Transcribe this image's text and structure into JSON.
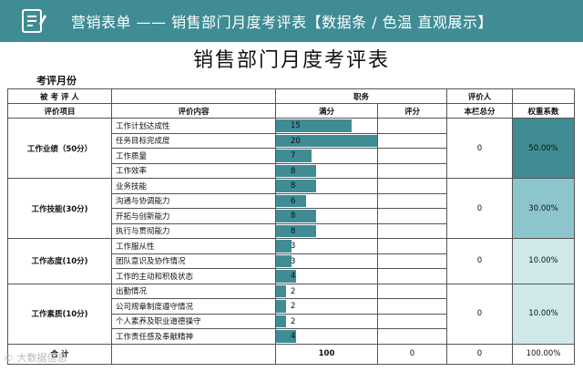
{
  "banner": {
    "title": "营销表单 —— 销售部门月度考评表【数据条 / 色温 直观展示】",
    "icon": "clipboard-icon",
    "color": "#3f8c94"
  },
  "sheet_title": "销售部门月度考评表",
  "period_label": "考评月份",
  "header": {
    "evaluatee": "被 考 评 人",
    "position": "职务",
    "evaluator": "评价人",
    "item": "评价项目",
    "content": "评价内容",
    "full_score": "满分",
    "score": "评分",
    "section_total": "本栏总分",
    "weight": "权重系数"
  },
  "sections": [
    {
      "name": "工作业绩（50分）",
      "total": "0",
      "weight": "50.00%",
      "weight_fill": 0.5,
      "rows": [
        {
          "content": "工作计划达成性",
          "full": 15
        },
        {
          "content": "任务目标完成度",
          "full": 20
        },
        {
          "content": "工作质量",
          "full": 7
        },
        {
          "content": "工作效率",
          "full": 8
        }
      ]
    },
    {
      "name": "工作技能(30分)",
      "total": "0",
      "weight": "30.00%",
      "weight_fill": 0.3,
      "rows": [
        {
          "content": "业务技能",
          "full": 8
        },
        {
          "content": "沟通与协调能力",
          "full": 6
        },
        {
          "content": "开拓与创新能力",
          "full": 8
        },
        {
          "content": "执行与贯彻能力",
          "full": 8
        }
      ]
    },
    {
      "name": "工作态度(10分)",
      "total": "0",
      "weight": "10.00%",
      "weight_fill": 0.1,
      "rows": [
        {
          "content": "工作服从性",
          "full": 3
        },
        {
          "content": "团队意识及协作情况",
          "full": 3
        },
        {
          "content": "工作的主动和积极状态",
          "full": 4
        }
      ]
    },
    {
      "name": "工作素质(10分)",
      "total": "0",
      "weight": "10.00%",
      "weight_fill": 0.1,
      "rows": [
        {
          "content": "出勤情况",
          "full": 2
        },
        {
          "content": "公司规章制度遵守情况",
          "full": 2
        },
        {
          "content": "个人素养及职业道德操守",
          "full": 2
        },
        {
          "content": "工作责任感及奉献精神",
          "full": 4
        }
      ]
    }
  ],
  "total_row": {
    "label": "合  计",
    "full": "100",
    "score": "0",
    "section_total": "0",
    "weight": "100.00%"
  },
  "bar_max": 20,
  "colors": {
    "bar": "#3f8c94",
    "weight_high": "#3f8c94",
    "weight_mid": "#8cc6cc",
    "weight_low": "#cfe8ea"
  },
  "watermark": "© 大数据信息"
}
